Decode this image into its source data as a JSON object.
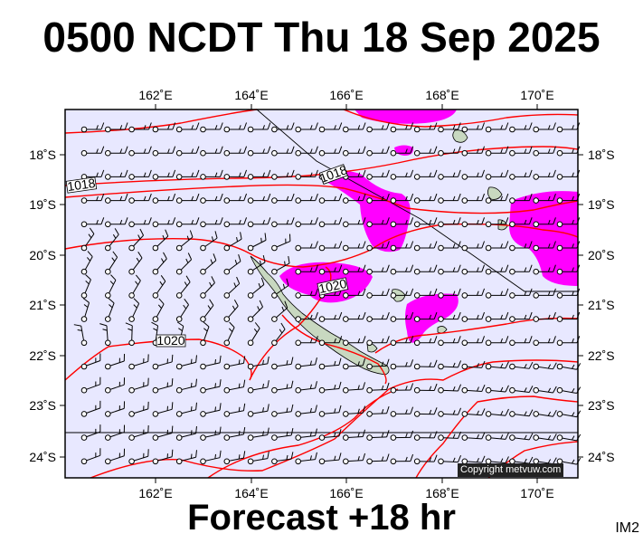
{
  "header": {
    "title": "0500 NCDT Thu 18 Sep 2025"
  },
  "footer": {
    "subtitle": "Forecast +18 hr",
    "code": "IM2"
  },
  "map": {
    "copyright": "Copyright metvuw.com",
    "x_ticks": [
      {
        "lon": 162,
        "label": "162˚E"
      },
      {
        "lon": 164,
        "label": "164˚E"
      },
      {
        "lon": 166,
        "label": "166˚E"
      },
      {
        "lon": 168,
        "label": "168˚E"
      },
      {
        "lon": 170,
        "label": "170˚E"
      }
    ],
    "y_ticks": [
      {
        "lat": -18,
        "label": "18˚S"
      },
      {
        "lat": -19,
        "label": "19˚S"
      },
      {
        "lat": -20,
        "label": "20˚S"
      },
      {
        "lat": -21,
        "label": "21˚S"
      },
      {
        "lat": -22,
        "label": "22˚S"
      },
      {
        "lat": -23,
        "label": "23˚S"
      },
      {
        "lat": -24,
        "label": "24˚S"
      }
    ],
    "isobar_labels": [
      {
        "text": "1018"
      },
      {
        "text": "1018"
      },
      {
        "text": "1020"
      },
      {
        "text": "1020"
      }
    ],
    "colors": {
      "sea": "#e8e8ff",
      "isobar": "#ff0000",
      "rain": "#ff00ff",
      "land": "#c8d8c0",
      "wind": "#000000"
    },
    "wind_barb_rows": 15,
    "wind_barb_cols": 21
  }
}
